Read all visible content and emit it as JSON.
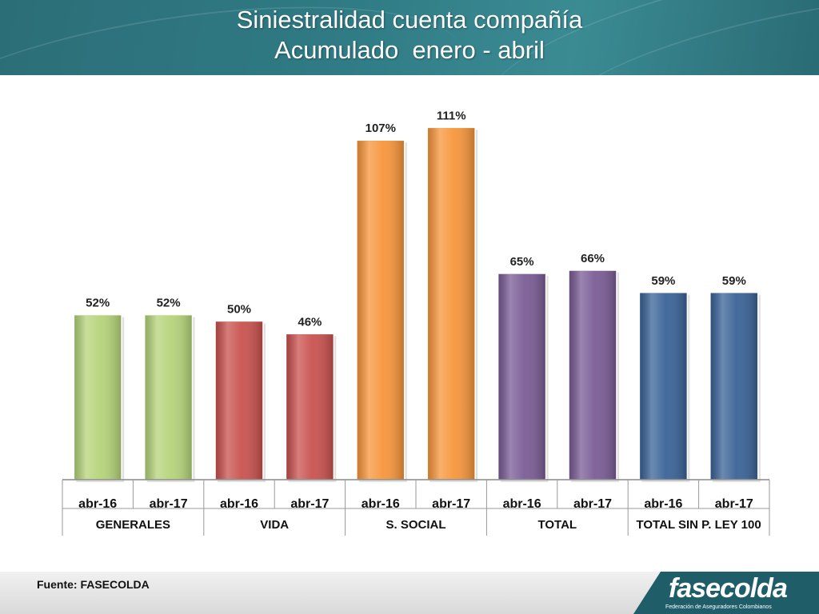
{
  "header": {
    "title_line1": "Siniestralidad cuenta compañía",
    "title_line2": "Acumulado  enero - abril"
  },
  "footer": {
    "source": "Fuente: FASECOLDA",
    "logo_word": "fasecolda",
    "logo_subtitle": "Federación de Aseguradores Colombianos"
  },
  "chart_data": {
    "type": "bar",
    "title": "Siniestralidad cuenta compañía Acumulado  enero - abril",
    "xlabel": "",
    "ylabel": "",
    "ylim": [
      0,
      115
    ],
    "grid": false,
    "legend": "none",
    "groups": [
      {
        "name": "GENERALES",
        "color": "#b5d47a",
        "bars": [
          {
            "label": "abr-16",
            "value": 52,
            "text": "52%"
          },
          {
            "label": "abr-17",
            "value": 52,
            "text": "52%"
          }
        ]
      },
      {
        "name": "VIDA",
        "color": "#c9524f",
        "bars": [
          {
            "label": "abr-16",
            "value": 50,
            "text": "50%"
          },
          {
            "label": "abr-17",
            "value": 46,
            "text": "46%"
          }
        ]
      },
      {
        "name": "S. SOCIAL",
        "color": "#f7963c",
        "bars": [
          {
            "label": "abr-16",
            "value": 107,
            "text": "107%"
          },
          {
            "label": "abr-17",
            "value": 111,
            "text": "111%"
          }
        ]
      },
      {
        "name": "TOTAL",
        "color": "#7a5c96",
        "bars": [
          {
            "label": "abr-16",
            "value": 65,
            "text": "65%"
          },
          {
            "label": "abr-17",
            "value": 66,
            "text": "66%"
          }
        ]
      },
      {
        "name": "TOTAL SIN P. LEY 100",
        "color": "#3a6397",
        "bars": [
          {
            "label": "abr-16",
            "value": 59,
            "text": "59%"
          },
          {
            "label": "abr-17",
            "value": 59,
            "text": "59%"
          }
        ]
      }
    ]
  }
}
